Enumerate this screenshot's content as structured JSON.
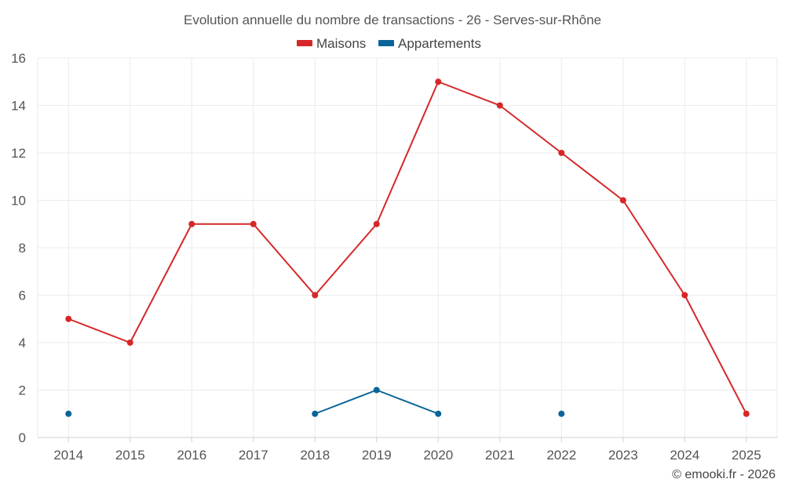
{
  "chart_data": {
    "type": "line",
    "title": "Evolution annuelle du nombre de transactions - 26 - Serves-sur-Rhône",
    "categories": [
      "2014",
      "2015",
      "2016",
      "2017",
      "2018",
      "2019",
      "2020",
      "2021",
      "2022",
      "2023",
      "2024",
      "2025"
    ],
    "ylim": [
      0,
      16
    ],
    "yticks": [
      0,
      2,
      4,
      6,
      8,
      10,
      12,
      14,
      16
    ],
    "xlabel": "",
    "ylabel": "",
    "grid": true,
    "legend_position": "top-center",
    "series": [
      {
        "name": "Maisons",
        "color": "#d62728",
        "values": [
          5,
          4,
          9,
          9,
          6,
          9,
          15,
          14,
          12,
          10,
          6,
          1
        ]
      },
      {
        "name": "Appartements",
        "color": "#0a6499",
        "values": [
          1,
          null,
          null,
          null,
          1,
          2,
          1,
          null,
          1,
          null,
          null,
          null
        ]
      }
    ]
  },
  "credit": "© emooki.fr - 2026"
}
